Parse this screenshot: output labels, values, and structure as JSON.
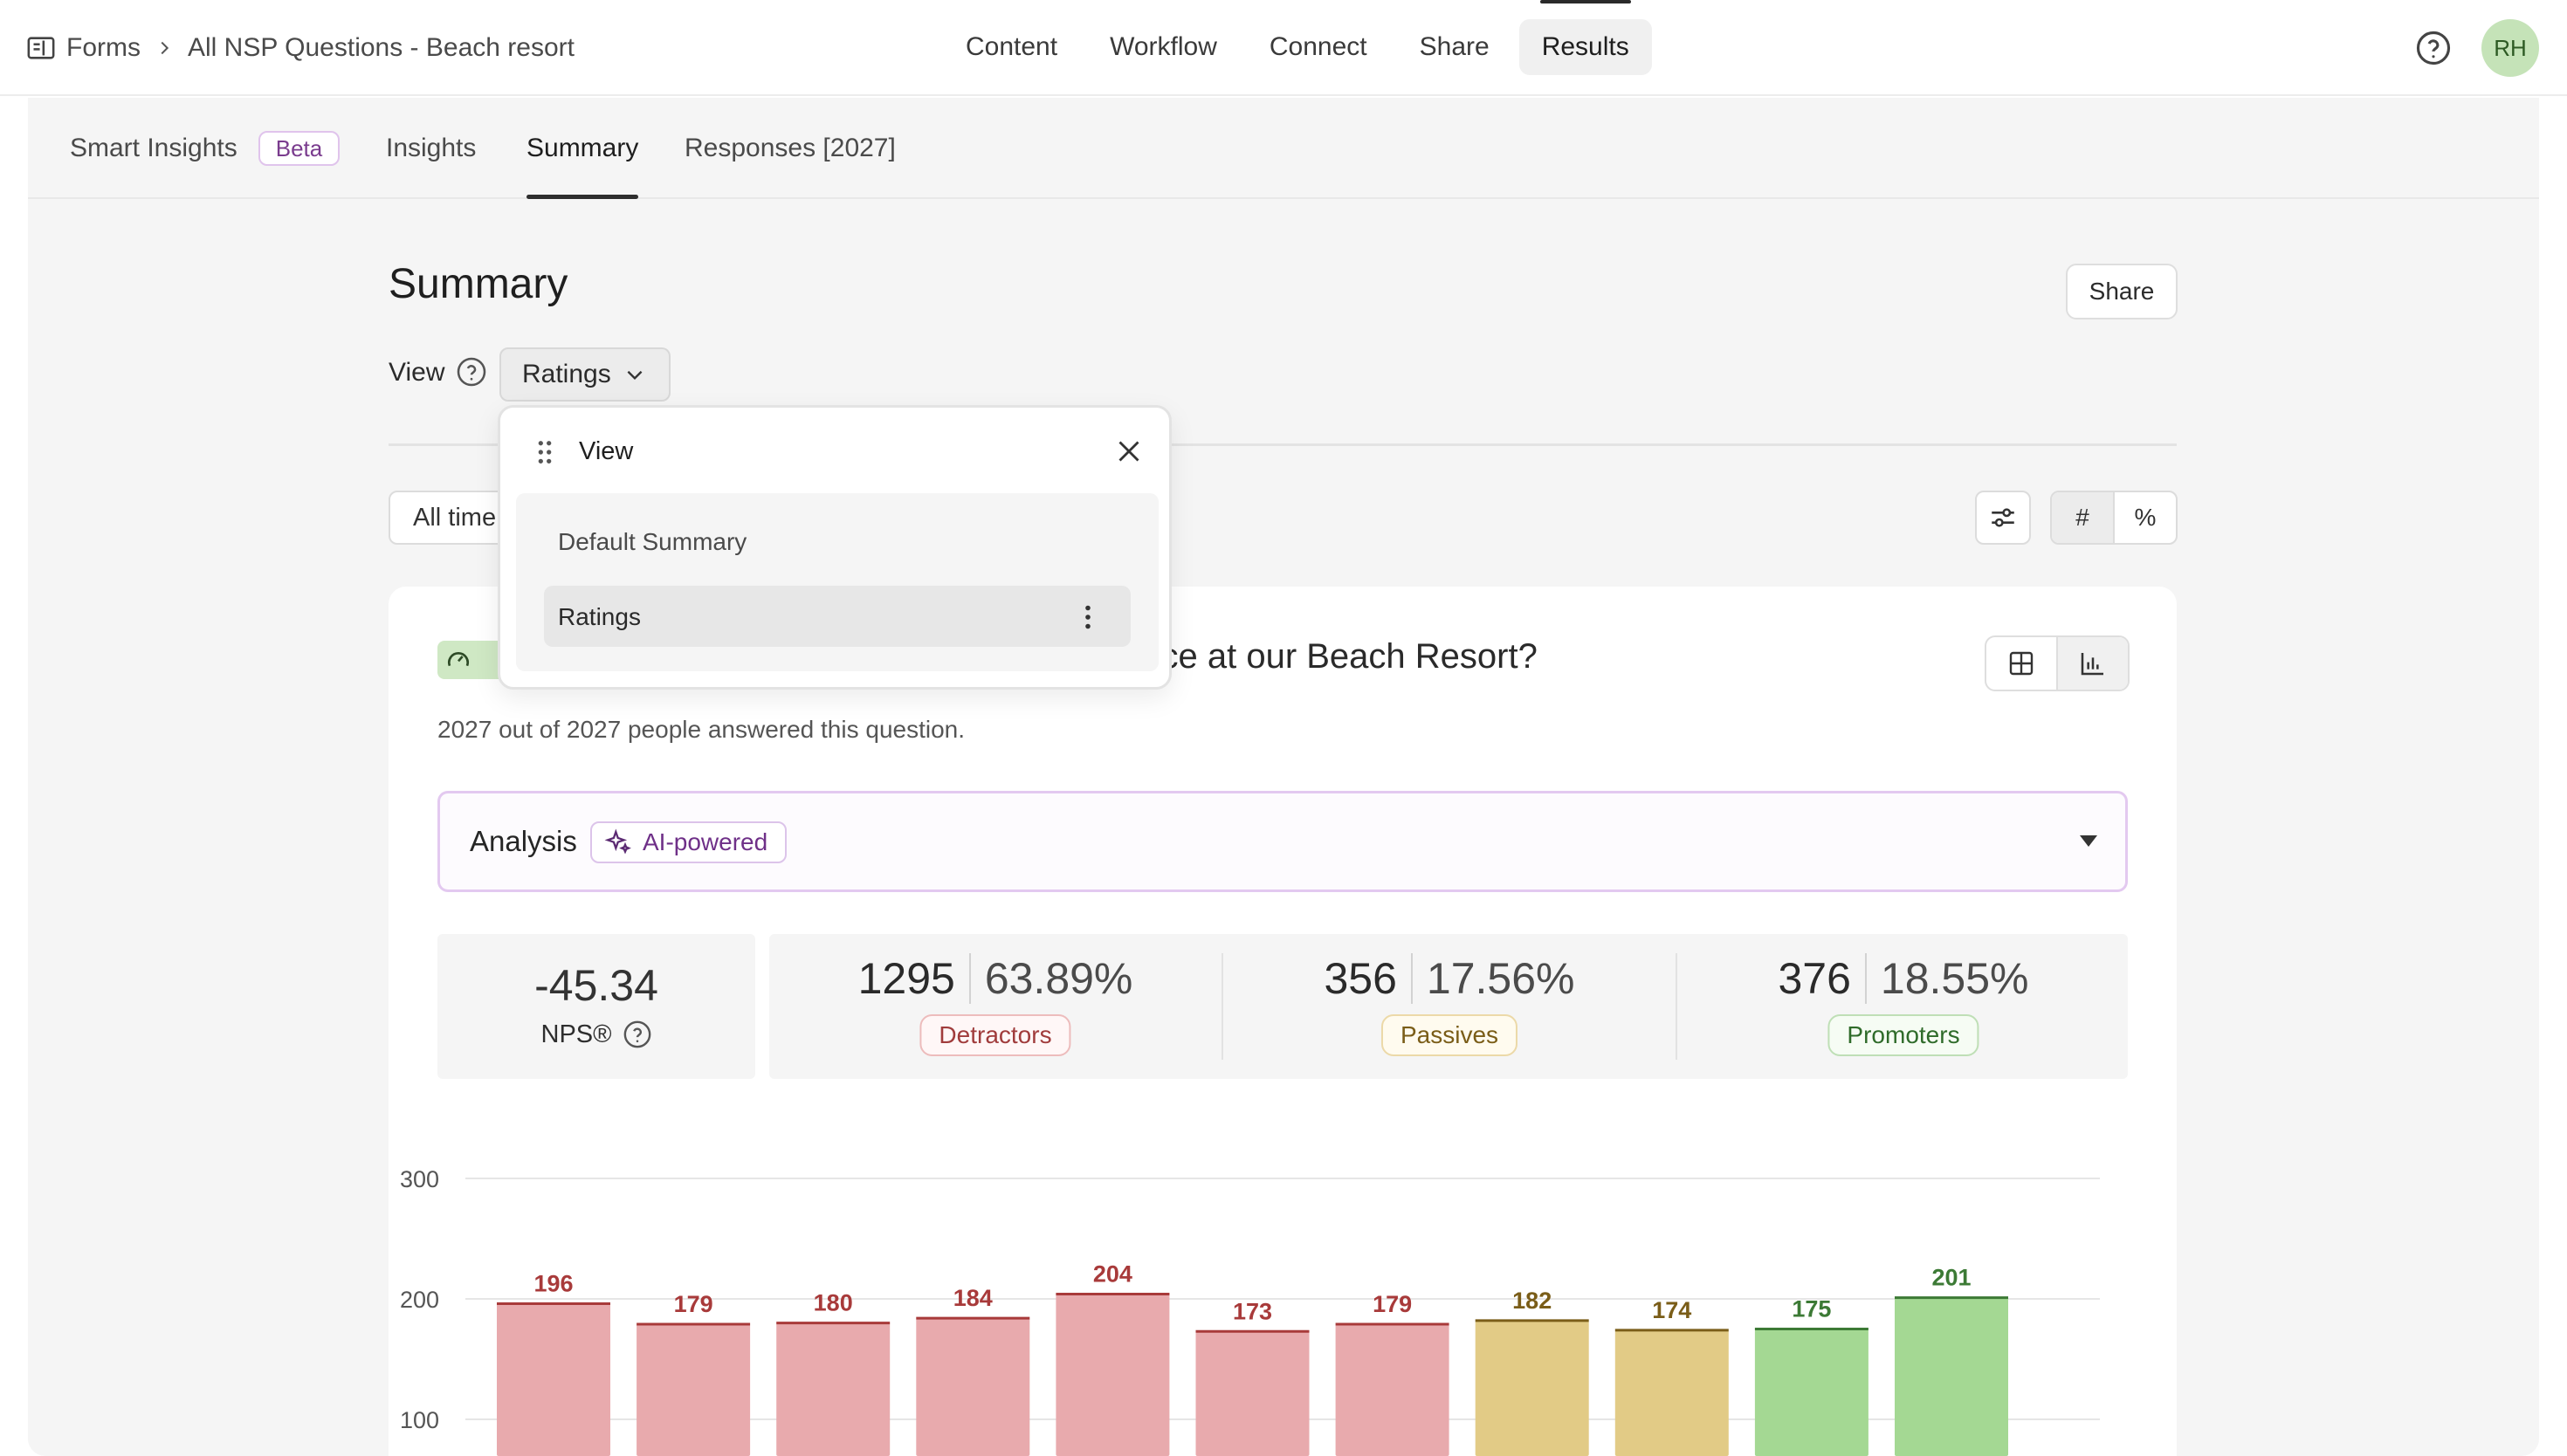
{
  "breadcrumb": {
    "icon": "form-icon",
    "root": "Forms",
    "current": "All NSP Questions - Beach resort"
  },
  "topnav": [
    "Content",
    "Workflow",
    "Connect",
    "Share",
    "Results"
  ],
  "topnav_active": "Results",
  "user": {
    "initials": "RH"
  },
  "tabs": {
    "smart_insights": "Smart Insights",
    "beta": "Beta",
    "insights": "Insights",
    "summary": "Summary",
    "responses": "Responses [2027]"
  },
  "page": {
    "title": "Summary",
    "share": "Share",
    "view_label": "View",
    "view_selected": "Ratings",
    "date_filter": "All time",
    "count_toggle": "#",
    "percent_toggle": "%"
  },
  "popup": {
    "title": "View",
    "options": [
      "Default Summary",
      "Ratings"
    ],
    "selected": "Ratings"
  },
  "question": {
    "title_visible": "ence at our Beach Resort?",
    "answered": "2027 out of 2027 people answered this question.",
    "analysis": "Analysis",
    "ai_badge": "AI-powered"
  },
  "stats": {
    "nps_value": "-45.34",
    "nps_label": "NPS®",
    "groups": [
      {
        "count": "1295",
        "percent": "63.89%",
        "label": "Detractors"
      },
      {
        "count": "356",
        "percent": "17.56%",
        "label": "Passives"
      },
      {
        "count": "376",
        "percent": "18.55%",
        "label": "Promoters"
      }
    ]
  },
  "colors": {
    "detractor_bar": "#e8aaad",
    "detractor_edge": "#a83a3a",
    "passive_bar": "#e2cb86",
    "passive_edge": "#7a5d18",
    "promoter_bar": "#a4d893",
    "promoter_edge": "#3c7a35"
  },
  "chart_data": {
    "type": "bar",
    "y_ticks": [
      100,
      200,
      300
    ],
    "ylim_visible": [
      100,
      300
    ],
    "values": [
      196,
      179,
      180,
      184,
      204,
      173,
      179,
      182,
      174,
      175,
      201
    ],
    "groups": [
      "detractor",
      "detractor",
      "detractor",
      "detractor",
      "detractor",
      "detractor",
      "detractor",
      "passive",
      "passive",
      "promoter",
      "promoter"
    ],
    "grid": true
  }
}
